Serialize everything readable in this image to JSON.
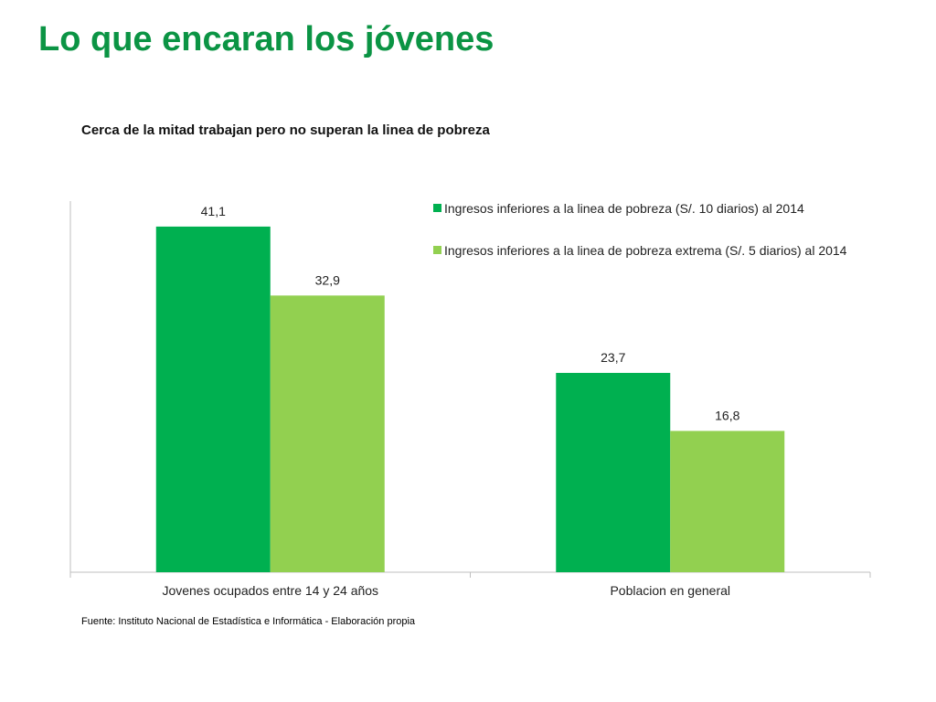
{
  "slide": {
    "title": "Lo que encaran los jóvenes"
  },
  "source_note": "Fuente: Instituto Nacional de Estadística e Informática - Elaboración propia",
  "chart_data": {
    "type": "bar",
    "title": "Cerca de la mitad trabajan pero no superan la linea de pobreza",
    "categories": [
      "Jovenes ocupados entre 14 y 24 años",
      "Poblacion en general"
    ],
    "series": [
      {
        "name": "Ingresos inferiores a la linea de pobreza (S/. 10 diarios) al 2014",
        "color": "#00b050",
        "values": [
          41.1,
          23.7
        ],
        "labels": [
          "41,1",
          "23,7"
        ]
      },
      {
        "name": "Ingresos inferiores a la linea de pobreza extrema (S/. 5 diarios) al 2014",
        "color": "#92d050",
        "values": [
          32.9,
          16.8
        ],
        "labels": [
          "32,9",
          "16,8"
        ]
      }
    ],
    "ylim": [
      0,
      45
    ],
    "grid": false,
    "legend_position": "top-right",
    "data_labels": true
  }
}
